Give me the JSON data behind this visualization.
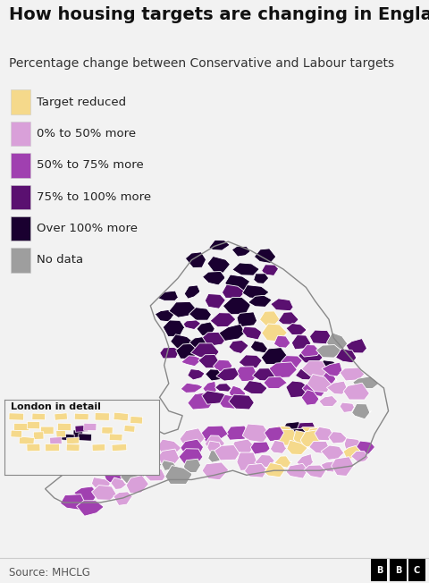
{
  "title": "How housing targets are changing in England",
  "subtitle": "Percentage change between Conservative and Labour targets",
  "source": "Source: MHCLG",
  "legend_items": [
    {
      "label": "Target reduced",
      "color": "#F5D98B"
    },
    {
      "label": "0% to 50% more",
      "color": "#D9A0D9"
    },
    {
      "label": "50% to 75% more",
      "color": "#A040B0"
    },
    {
      "label": "75% to 100% more",
      "color": "#5A1070"
    },
    {
      "label": "Over 100% more",
      "color": "#1A0030"
    },
    {
      "label": "No data",
      "color": "#9E9E9E"
    }
  ],
  "london_label": "London in detail",
  "background_color": "#F2F2F2",
  "title_fontsize": 14,
  "subtitle_fontsize": 10,
  "legend_fontsize": 9.5,
  "source_fontsize": 8.5
}
